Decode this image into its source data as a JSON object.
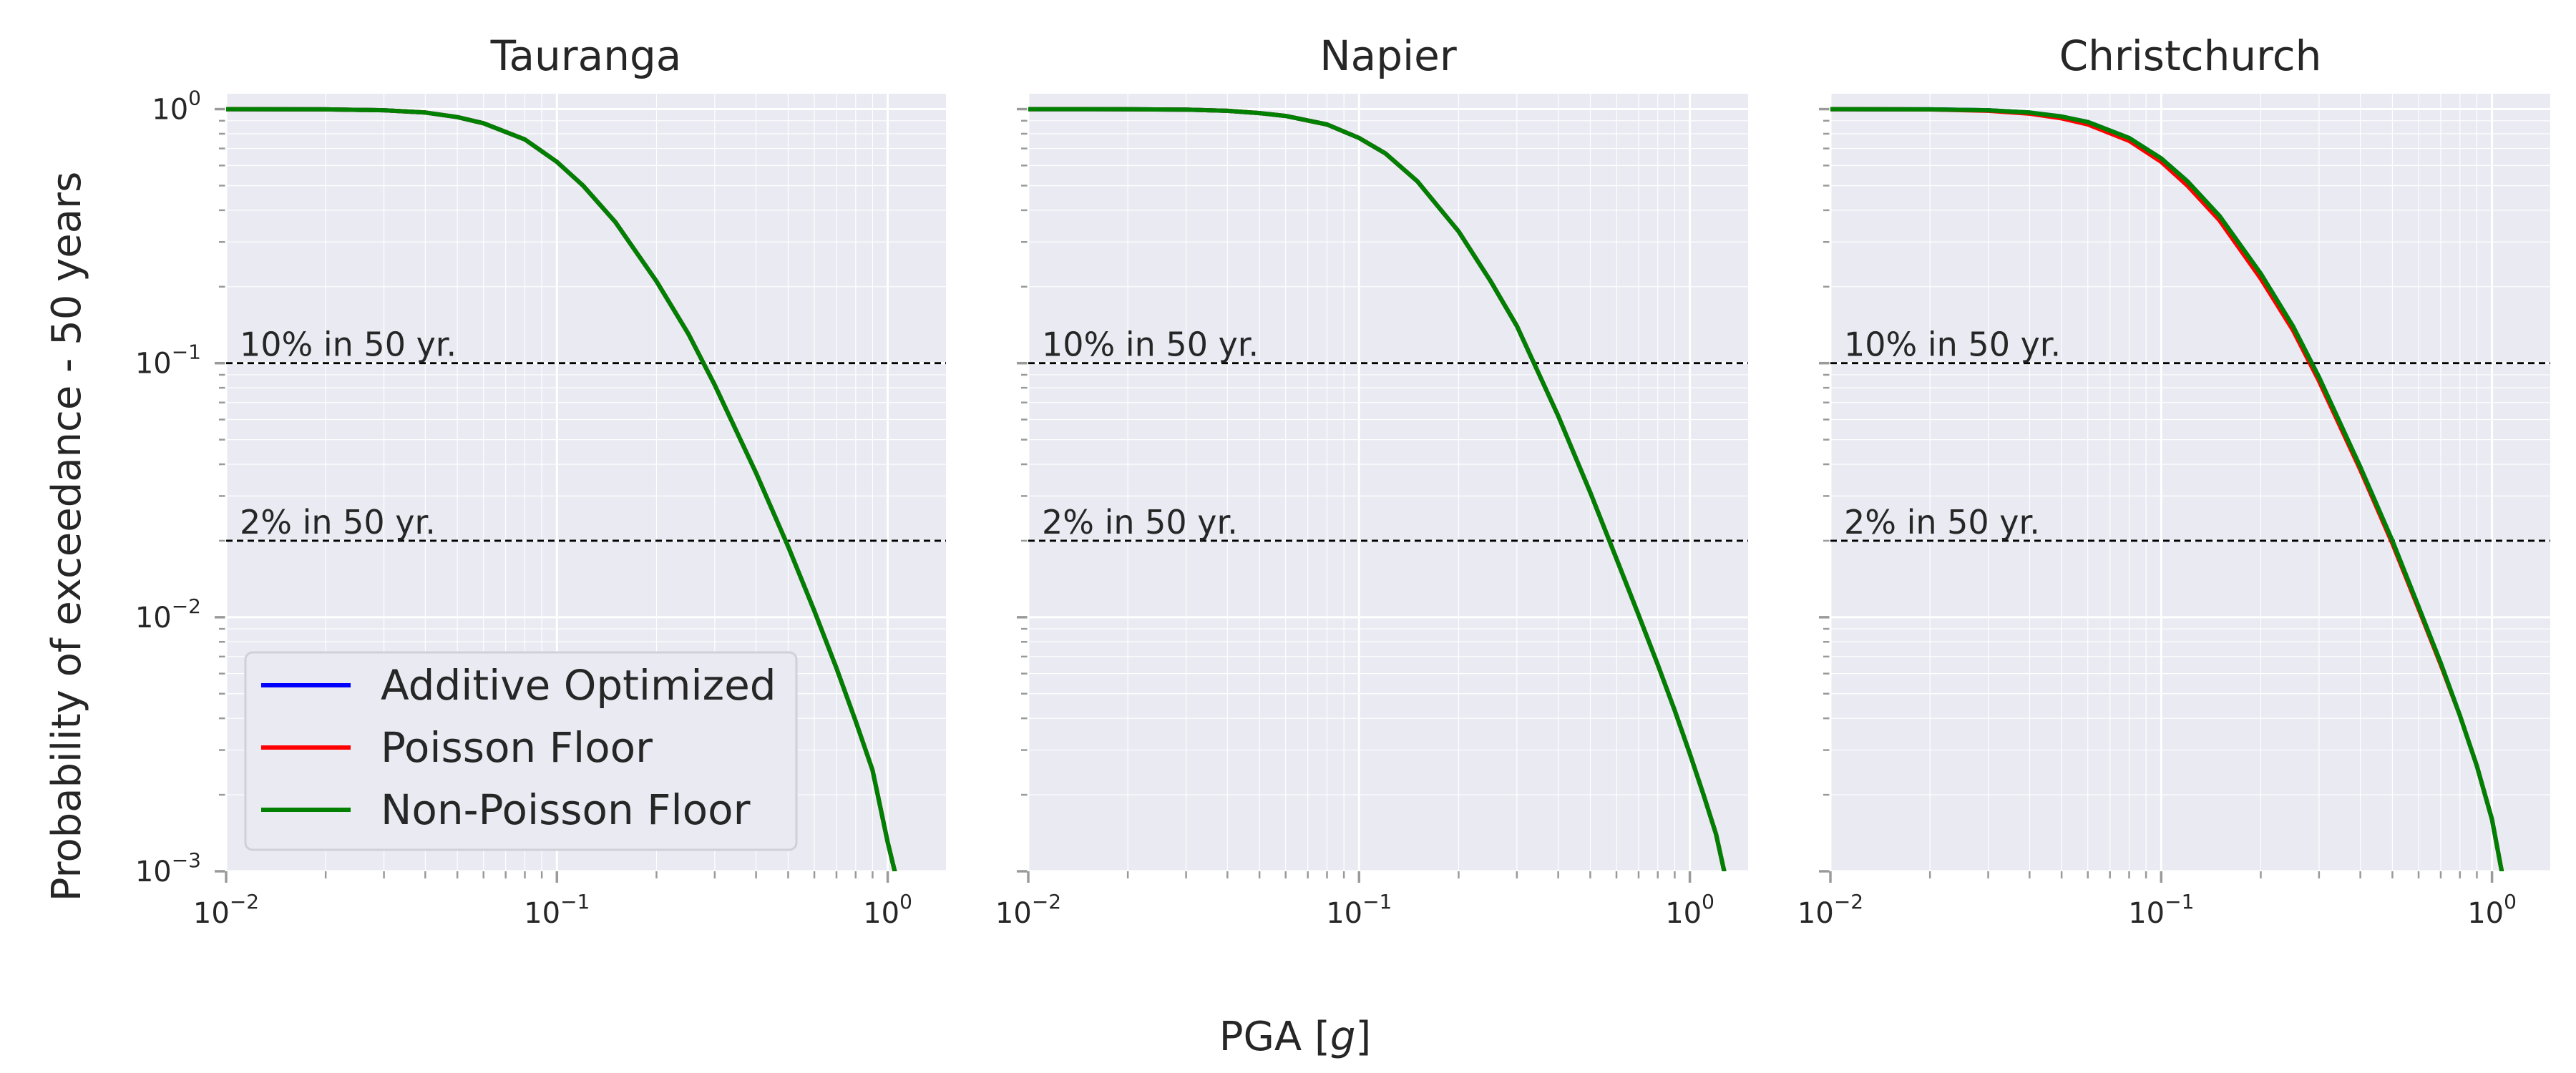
{
  "colors": {
    "plot_background": "#e9eaf2",
    "grid": "#ffffff",
    "text": "#262626",
    "series": [
      "#0000ff",
      "#ff0000",
      "#008000"
    ],
    "reference_line": "#000000"
  },
  "axes": {
    "xlabel_prefix": "PGA [",
    "xlabel_var": "g",
    "xlabel_suffix": "]",
    "ylabel": "Probability of exceedance - 50 years"
  },
  "legend": {
    "placement": "lower-left",
    "entries": [
      "Additive Optimized",
      "Poisson Floor",
      "Non-Poisson Floor"
    ]
  },
  "chart_data": [
    {
      "type": "line",
      "title": "Tauranga",
      "x_scale": "log",
      "y_scale": "log",
      "xlim": [
        0.01,
        1.5
      ],
      "ylim": [
        0.001,
        1.15
      ],
      "x_ticks": [
        {
          "base": "10",
          "exp": "−2"
        },
        {
          "base": "10",
          "exp": "−1"
        },
        {
          "base": "10",
          "exp": "0"
        }
      ],
      "y_ticks": [
        {
          "base": "10",
          "exp": "0"
        },
        {
          "base": "10",
          "exp": "−1"
        },
        {
          "base": "10",
          "exp": "−2"
        },
        {
          "base": "10",
          "exp": "−3"
        }
      ],
      "grid": true,
      "reference_lines": [
        {
          "y": 0.1,
          "label": "10% in 50 yr."
        },
        {
          "y": 0.02,
          "label": "2% in 50 yr."
        }
      ],
      "x": [
        0.01,
        0.02,
        0.03,
        0.04,
        0.05,
        0.06,
        0.08,
        0.1,
        0.12,
        0.15,
        0.2,
        0.25,
        0.3,
        0.4,
        0.5,
        0.6,
        0.7,
        0.8,
        0.9,
        1.0,
        1.05
      ],
      "series": [
        {
          "name": "Additive Optimized",
          "values": [
            1.0,
            0.998,
            0.99,
            0.97,
            0.93,
            0.88,
            0.76,
            0.62,
            0.5,
            0.36,
            0.21,
            0.13,
            0.082,
            0.037,
            0.019,
            0.0106,
            0.0063,
            0.0039,
            0.0025,
            0.0013,
            0.001
          ]
        },
        {
          "name": "Poisson Floor",
          "values": [
            1.0,
            0.998,
            0.99,
            0.97,
            0.93,
            0.88,
            0.76,
            0.62,
            0.5,
            0.36,
            0.21,
            0.13,
            0.082,
            0.037,
            0.019,
            0.0106,
            0.0063,
            0.0039,
            0.0025,
            0.0013,
            0.001
          ]
        },
        {
          "name": "Non-Poisson Floor",
          "values": [
            1.0,
            0.998,
            0.99,
            0.97,
            0.93,
            0.88,
            0.76,
            0.62,
            0.5,
            0.36,
            0.21,
            0.13,
            0.082,
            0.037,
            0.019,
            0.0106,
            0.0063,
            0.0039,
            0.0025,
            0.0013,
            0.001
          ]
        }
      ]
    },
    {
      "type": "line",
      "title": "Napier",
      "x_scale": "log",
      "y_scale": "log",
      "xlim": [
        0.01,
        1.5
      ],
      "ylim": [
        0.001,
        1.15
      ],
      "x_ticks": [
        {
          "base": "10",
          "exp": "−2"
        },
        {
          "base": "10",
          "exp": "−1"
        },
        {
          "base": "10",
          "exp": "0"
        }
      ],
      "grid": true,
      "reference_lines": [
        {
          "y": 0.1,
          "label": "10% in 50 yr."
        },
        {
          "y": 0.02,
          "label": "2% in 50 yr."
        }
      ],
      "x": [
        0.01,
        0.02,
        0.03,
        0.04,
        0.05,
        0.06,
        0.08,
        0.1,
        0.12,
        0.15,
        0.2,
        0.25,
        0.3,
        0.4,
        0.5,
        0.6,
        0.7,
        0.8,
        0.9,
        1.0,
        1.1,
        1.2,
        1.27
      ],
      "series": [
        {
          "name": "Additive Optimized",
          "values": [
            1.0,
            0.999,
            0.995,
            0.985,
            0.965,
            0.94,
            0.87,
            0.77,
            0.67,
            0.52,
            0.33,
            0.21,
            0.14,
            0.062,
            0.031,
            0.017,
            0.0102,
            0.0065,
            0.0043,
            0.0029,
            0.002,
            0.0014,
            0.001
          ]
        },
        {
          "name": "Poisson Floor",
          "values": [
            1.0,
            0.999,
            0.995,
            0.985,
            0.965,
            0.94,
            0.87,
            0.77,
            0.67,
            0.52,
            0.33,
            0.21,
            0.14,
            0.062,
            0.031,
            0.017,
            0.0102,
            0.0065,
            0.0043,
            0.0029,
            0.002,
            0.0014,
            0.001
          ]
        },
        {
          "name": "Non-Poisson Floor",
          "values": [
            1.0,
            0.999,
            0.995,
            0.985,
            0.965,
            0.94,
            0.87,
            0.77,
            0.67,
            0.52,
            0.33,
            0.21,
            0.14,
            0.062,
            0.031,
            0.017,
            0.0102,
            0.0065,
            0.0043,
            0.0029,
            0.002,
            0.0014,
            0.001
          ]
        }
      ]
    },
    {
      "type": "line",
      "title": "Christchurch",
      "x_scale": "log",
      "y_scale": "log",
      "xlim": [
        0.01,
        1.5
      ],
      "ylim": [
        0.001,
        1.15
      ],
      "x_ticks": [
        {
          "base": "10",
          "exp": "−2"
        },
        {
          "base": "10",
          "exp": "−1"
        },
        {
          "base": "10",
          "exp": "0"
        }
      ],
      "grid": true,
      "reference_lines": [
        {
          "y": 0.1,
          "label": "10% in 50 yr."
        },
        {
          "y": 0.02,
          "label": "2% in 50 yr."
        }
      ],
      "x": [
        0.01,
        0.02,
        0.03,
        0.04,
        0.05,
        0.06,
        0.08,
        0.1,
        0.12,
        0.15,
        0.2,
        0.25,
        0.3,
        0.4,
        0.5,
        0.6,
        0.7,
        0.8,
        0.9,
        1.0,
        1.07
      ],
      "series": [
        {
          "name": "Additive Optimized",
          "values": [
            1.0,
            0.998,
            0.99,
            0.97,
            0.935,
            0.89,
            0.77,
            0.64,
            0.52,
            0.38,
            0.225,
            0.14,
            0.088,
            0.039,
            0.02,
            0.011,
            0.0066,
            0.0041,
            0.0026,
            0.0016,
            0.001
          ]
        },
        {
          "name": "Poisson Floor",
          "values": [
            1.0,
            0.997,
            0.985,
            0.96,
            0.92,
            0.87,
            0.75,
            0.62,
            0.5,
            0.365,
            0.215,
            0.135,
            0.085,
            0.038,
            0.0195,
            0.0108,
            0.0065,
            0.0041,
            0.0026,
            0.0016,
            0.001
          ]
        },
        {
          "name": "Non-Poisson Floor",
          "values": [
            1.0,
            0.998,
            0.99,
            0.97,
            0.935,
            0.89,
            0.77,
            0.64,
            0.52,
            0.38,
            0.225,
            0.14,
            0.088,
            0.039,
            0.02,
            0.011,
            0.0066,
            0.0041,
            0.0026,
            0.0016,
            0.001
          ]
        }
      ]
    }
  ]
}
